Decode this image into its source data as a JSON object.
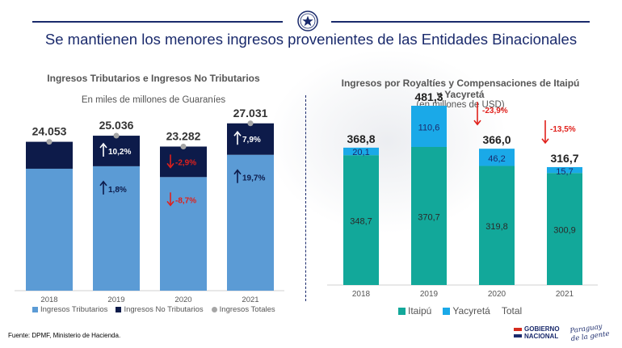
{
  "header": {
    "title": "Se mantienen los menores ingresos provenientes de las Entidades Binacionales"
  },
  "colors": {
    "navy": "#1a2a6c",
    "light_blue": "#5b9bd5",
    "dark_navy": "#0d1b4a",
    "teal": "#12a89a",
    "cyan": "#1aa9e8",
    "red": "#e0201b",
    "grey": "#a6a6a6"
  },
  "chart_data": [
    {
      "type": "bar",
      "stacked": true,
      "title": "Ingresos Tributarios e Ingresos No Tributarios",
      "subtitle": "En miles de millones de Guaraníes",
      "categories": [
        "2018",
        "2019",
        "2020",
        "2021"
      ],
      "series": [
        {
          "name": "Ingresos Tributarios",
          "values": [
            19700,
            20100,
            18350,
            21950
          ]
        },
        {
          "name": "Ingresos No Tributarios",
          "values": [
            4353,
            4936,
            4932,
            5081
          ]
        }
      ],
      "totals": {
        "name": "Ingresos Totales",
        "values": [
          24053,
          25036,
          23282,
          27031
        ],
        "labels": [
          "24.053",
          "25.036",
          "23.282",
          "27.031"
        ]
      },
      "annotations": [
        {
          "category": "2019",
          "series": "Ingresos No Tributarios",
          "text": "10,2%",
          "direction": "up"
        },
        {
          "category": "2019",
          "series": "Ingresos Tributarios",
          "text": "1,8%",
          "direction": "up"
        },
        {
          "category": "2020",
          "series": "Ingresos No Tributarios",
          "text": "-2,9%",
          "direction": "down"
        },
        {
          "category": "2020",
          "series": "Ingresos Tributarios",
          "text": "-8,7%",
          "direction": "down"
        },
        {
          "category": "2021",
          "series": "Ingresos No Tributarios",
          "text": "7,9%",
          "direction": "up"
        },
        {
          "category": "2021",
          "series": "Ingresos Tributarios",
          "text": "19,7%",
          "direction": "up"
        }
      ],
      "legend": [
        "Ingresos Tributarios",
        "Ingresos No Tributarios",
        "Ingresos Totales"
      ],
      "legend_position": "bottom",
      "ylim": [
        0,
        30000
      ]
    },
    {
      "type": "bar",
      "stacked": true,
      "title": "Ingresos por Royaltíes y Compensaciones de Itaipú y Yacyretá",
      "subtitle": "(en millones de USD)",
      "categories": [
        "2018",
        "2019",
        "2020",
        "2021"
      ],
      "series": [
        {
          "name": "Itaipú",
          "values": [
            348.7,
            370.7,
            319.8,
            300.9
          ],
          "labels": [
            "348,7",
            "370,7",
            "319,8",
            "300,9"
          ]
        },
        {
          "name": "Yacyretá",
          "values": [
            20.1,
            110.6,
            46.2,
            15.7
          ],
          "labels": [
            "20,1",
            "110,6",
            "46,2",
            "15,7"
          ]
        }
      ],
      "totals": {
        "name": "Total",
        "values": [
          368.8,
          481.3,
          366.0,
          316.7
        ],
        "labels": [
          "368,8",
          "481,3",
          "366,0",
          "316,7"
        ]
      },
      "annotations": [
        {
          "category": "2020",
          "text": "-23,9%",
          "direction": "down"
        },
        {
          "category": "2021",
          "text": "-13,5%",
          "direction": "down"
        }
      ],
      "legend": [
        "Itaipú",
        "Yacyretá",
        "Total"
      ],
      "legend_position": "bottom",
      "ylim": [
        0,
        560
      ]
    }
  ],
  "footer": {
    "source": "Fuente: DPMF, Ministerio de Hacienda.",
    "logo_line1": "GOBIERNO",
    "logo_line2": "NACIONAL",
    "tagline_line1": "Paraguay",
    "tagline_line2": "de la gente"
  }
}
